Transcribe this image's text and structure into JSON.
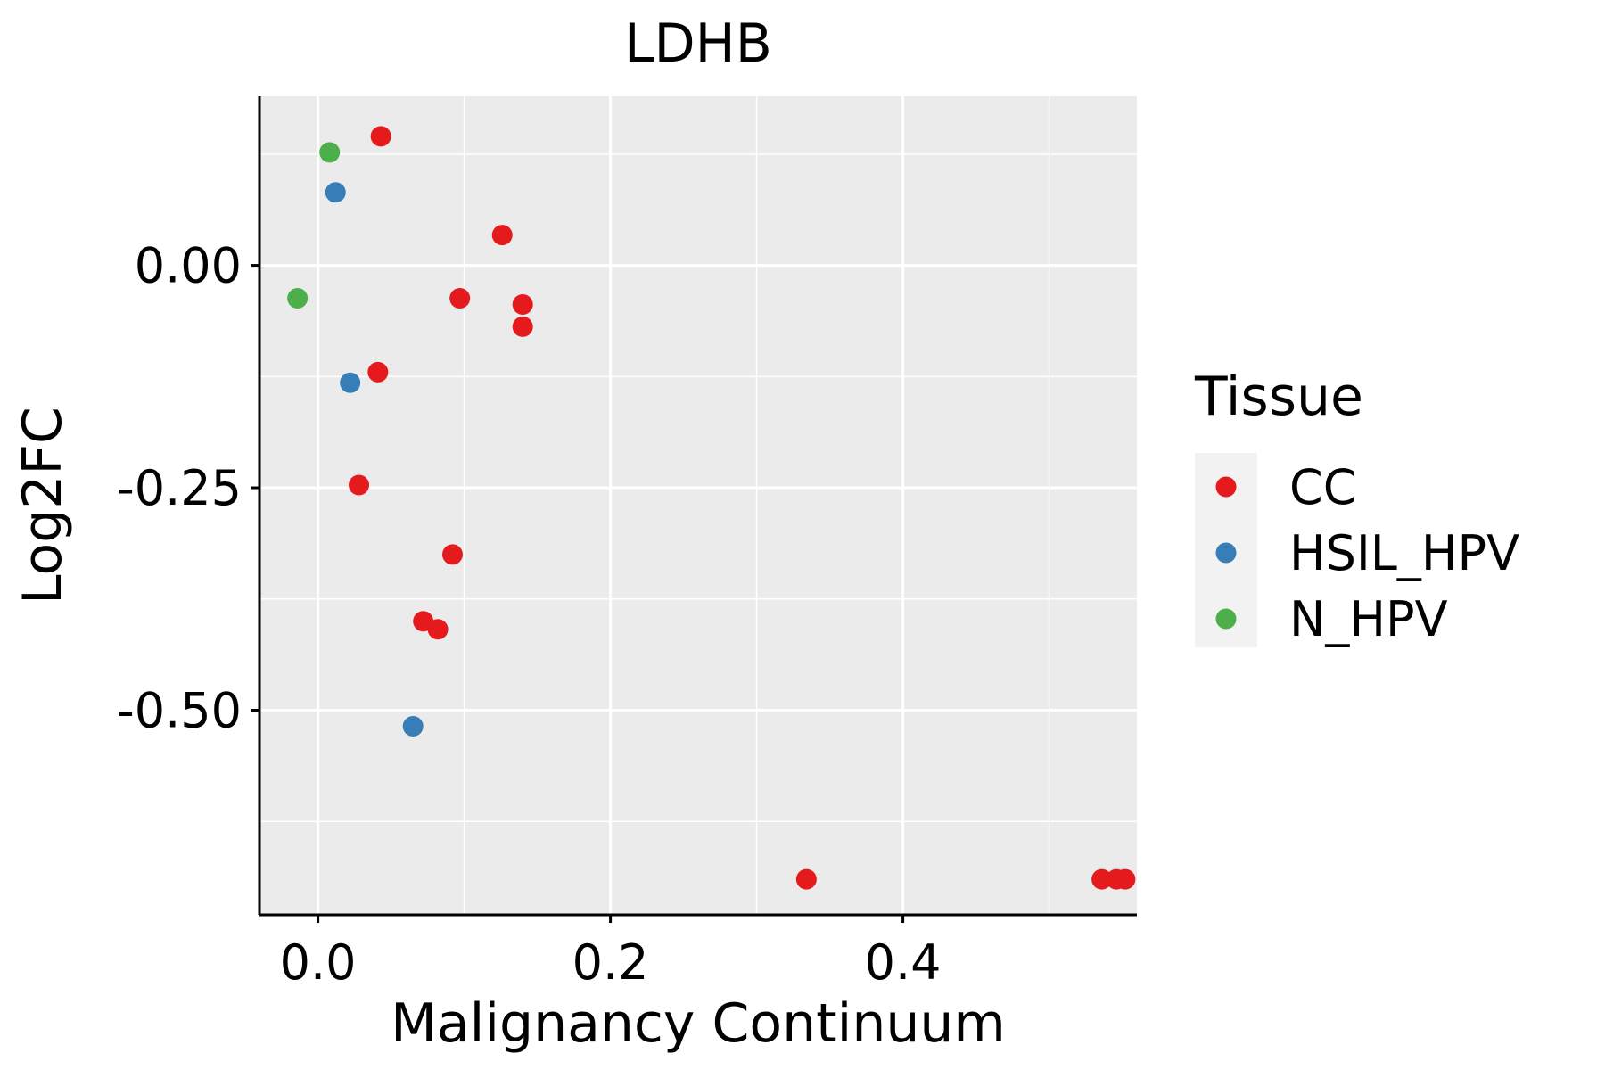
{
  "chart_data": {
    "type": "scatter",
    "title": "LDHB",
    "xlabel": "Malignancy Continuum",
    "ylabel": "Log2FC",
    "xlim": [
      -0.04,
      0.56
    ],
    "ylim": [
      -0.73,
      0.19
    ],
    "x_ticks": [
      0.0,
      0.2,
      0.4
    ],
    "x_tick_labels": [
      "0.0",
      "0.2",
      "0.4"
    ],
    "y_ticks": [
      0.0,
      -0.25,
      -0.5
    ],
    "y_tick_labels": [
      "0.00",
      "-0.25",
      "-0.50"
    ],
    "grid": true,
    "legend": {
      "title": "Tissue",
      "position": "right",
      "entries": [
        "CC",
        "HSIL_HPV",
        "N_HPV"
      ]
    },
    "colors": {
      "CC": "#e41a1c",
      "HSIL_HPV": "#377eb8",
      "N_HPV": "#4daf4a",
      "panel": "#ebebeb",
      "grid": "#ffffff"
    },
    "series": [
      {
        "name": "CC",
        "points": [
          [
            0.043,
            0.145
          ],
          [
            0.126,
            0.034
          ],
          [
            0.097,
            -0.037
          ],
          [
            0.14,
            -0.044
          ],
          [
            0.14,
            -0.069
          ],
          [
            0.041,
            -0.12
          ],
          [
            0.028,
            -0.247
          ],
          [
            0.092,
            -0.325
          ],
          [
            0.072,
            -0.4
          ],
          [
            0.082,
            -0.409
          ],
          [
            0.334,
            -0.69
          ],
          [
            0.536,
            -0.69
          ],
          [
            0.546,
            -0.69
          ],
          [
            0.552,
            -0.69
          ]
        ]
      },
      {
        "name": "HSIL_HPV",
        "points": [
          [
            0.012,
            0.082
          ],
          [
            0.022,
            -0.132
          ],
          [
            0.065,
            -0.518
          ]
        ]
      },
      {
        "name": "N_HPV",
        "points": [
          [
            0.008,
            0.127
          ],
          [
            -0.014,
            -0.037
          ]
        ]
      }
    ]
  }
}
